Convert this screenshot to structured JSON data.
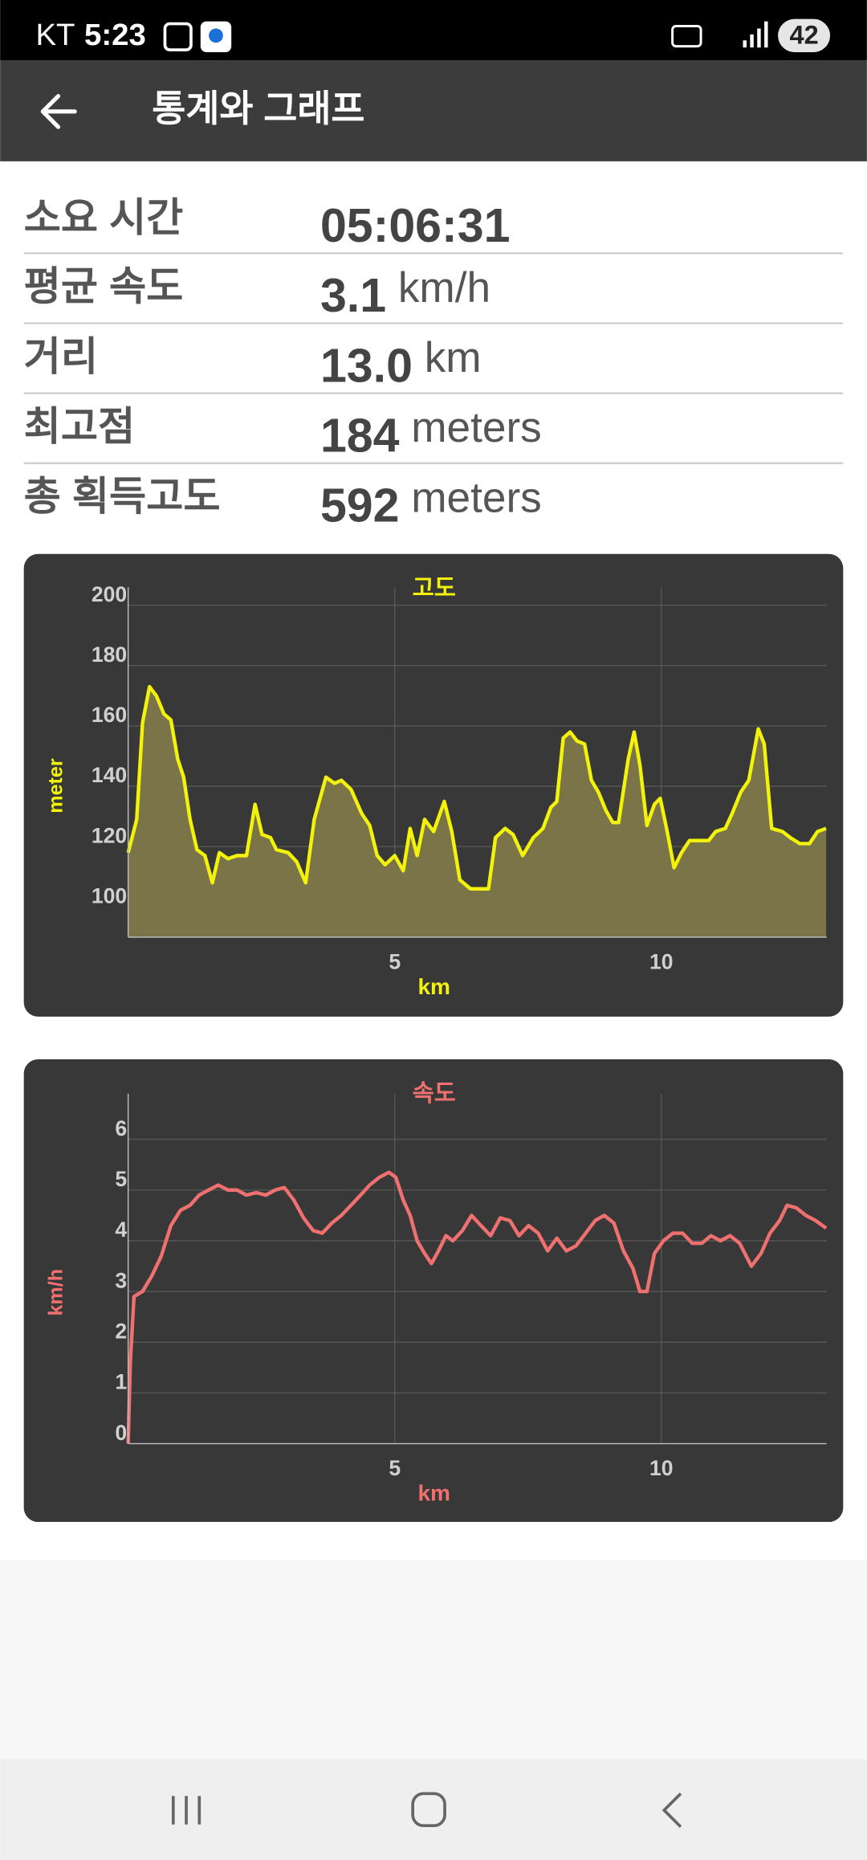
{
  "status_bar": {
    "carrier": "KT",
    "time": "5:23",
    "battery": "42"
  },
  "app_bar": {
    "title": "통계와 그래프"
  },
  "stats": [
    {
      "label": "소요 시간",
      "value": "05:06:31"
    },
    {
      "label": "평균 속도",
      "value": "3.1",
      "unit": "km/h"
    },
    {
      "label": "거리",
      "value": "13.0",
      "unit": "km"
    },
    {
      "label": "최고점",
      "value": "184",
      "unit": "meters"
    },
    {
      "label": "총 획득고도",
      "value": "592",
      "unit": "meters"
    }
  ],
  "chart_data": [
    {
      "type": "area",
      "title": "고도",
      "x_label": "km",
      "y_label": "meter",
      "color": "#f2f20a",
      "fill_color": "#7a7448",
      "grid": true,
      "xlim": [
        0,
        13.1
      ],
      "xticks": [
        5,
        10
      ],
      "ylim": [
        90,
        206
      ],
      "yticks": [
        100,
        120,
        140,
        160,
        180,
        200
      ],
      "x": [
        0,
        0.16,
        0.27,
        0.4,
        0.53,
        0.67,
        0.8,
        0.93,
        1.04,
        1.16,
        1.29,
        1.44,
        1.58,
        1.71,
        1.87,
        2.04,
        2.22,
        2.38,
        2.51,
        2.67,
        2.78,
        3.0,
        3.16,
        3.33,
        3.49,
        3.71,
        3.87,
        4.0,
        4.18,
        4.38,
        4.53,
        4.67,
        4.82,
        5.0,
        5.16,
        5.29,
        5.42,
        5.56,
        5.73,
        5.93,
        6.07,
        6.22,
        6.42,
        6.6,
        6.76,
        6.89,
        7.07,
        7.22,
        7.4,
        7.6,
        7.78,
        7.93,
        8.04,
        8.16,
        8.29,
        8.42,
        8.56,
        8.69,
        8.82,
        8.96,
        9.09,
        9.2,
        9.38,
        9.49,
        9.6,
        9.73,
        9.87,
        9.98,
        10.11,
        10.24,
        10.38,
        10.53,
        10.71,
        10.89,
        11.02,
        11.2,
        11.33,
        11.49,
        11.64,
        11.82,
        11.93,
        12.07,
        12.27,
        12.42,
        12.6,
        12.78,
        12.93,
        13.09
      ],
      "values": [
        118,
        129,
        161,
        173,
        170,
        164,
        162,
        149,
        143,
        129,
        119,
        117,
        108,
        118,
        116,
        117,
        117,
        134,
        124,
        123,
        119,
        118,
        115,
        108,
        129,
        143,
        141,
        142,
        139,
        131,
        127,
        117,
        114,
        117,
        112,
        126,
        117,
        129,
        125,
        135,
        125,
        109,
        106,
        106,
        106,
        123,
        126,
        124,
        117,
        123,
        126,
        133,
        135,
        156,
        158,
        155,
        154,
        142,
        138,
        132,
        128,
        128,
        149,
        158,
        147,
        127,
        134,
        136,
        125,
        113,
        118,
        122,
        122,
        122,
        125,
        126,
        131,
        138,
        142,
        159,
        154,
        126,
        125,
        123,
        121,
        121,
        125,
        126
      ]
    },
    {
      "type": "line",
      "title": "속도",
      "x_label": "km",
      "y_label": "km/h",
      "color": "#f07070",
      "grid": true,
      "xlim": [
        0,
        13.1
      ],
      "xticks": [
        5,
        10
      ],
      "ylim": [
        0,
        6.9
      ],
      "yticks": [
        0,
        1,
        2,
        3,
        4,
        5,
        6
      ],
      "x": [
        0,
        0.04,
        0.11,
        0.27,
        0.44,
        0.62,
        0.8,
        0.98,
        1.16,
        1.33,
        1.51,
        1.69,
        1.87,
        2.04,
        2.22,
        2.4,
        2.58,
        2.76,
        2.93,
        3.11,
        3.29,
        3.47,
        3.64,
        3.82,
        4.0,
        4.18,
        4.36,
        4.53,
        4.71,
        4.89,
        5.02,
        5.16,
        5.29,
        5.42,
        5.56,
        5.69,
        5.82,
        5.96,
        6.09,
        6.27,
        6.44,
        6.62,
        6.8,
        6.98,
        7.16,
        7.33,
        7.51,
        7.69,
        7.87,
        8.04,
        8.22,
        8.4,
        8.58,
        8.76,
        8.93,
        9.11,
        9.29,
        9.47,
        9.6,
        9.73,
        9.87,
        10.04,
        10.22,
        10.4,
        10.58,
        10.76,
        10.93,
        11.11,
        11.29,
        11.47,
        11.69,
        11.87,
        12.04,
        12.22,
        12.36,
        12.53,
        12.71,
        12.89,
        13.09
      ],
      "values": [
        0,
        1.6,
        2.9,
        3.0,
        3.3,
        3.7,
        4.3,
        4.6,
        4.7,
        4.9,
        5.0,
        5.1,
        5.0,
        5.0,
        4.9,
        4.95,
        4.9,
        5.0,
        5.05,
        4.8,
        4.45,
        4.2,
        4.15,
        4.35,
        4.5,
        4.7,
        4.9,
        5.1,
        5.25,
        5.35,
        5.25,
        4.8,
        4.5,
        4.0,
        3.75,
        3.55,
        3.8,
        4.1,
        4.0,
        4.2,
        4.5,
        4.3,
        4.1,
        4.45,
        4.4,
        4.1,
        4.3,
        4.15,
        3.8,
        4.05,
        3.8,
        3.9,
        4.15,
        4.4,
        4.5,
        4.35,
        3.8,
        3.45,
        3.0,
        3.0,
        3.75,
        4.0,
        4.15,
        4.15,
        3.95,
        3.95,
        4.1,
        4.0,
        4.1,
        3.95,
        3.5,
        3.75,
        4.15,
        4.4,
        4.7,
        4.65,
        4.5,
        4.4,
        4.25
      ]
    }
  ]
}
